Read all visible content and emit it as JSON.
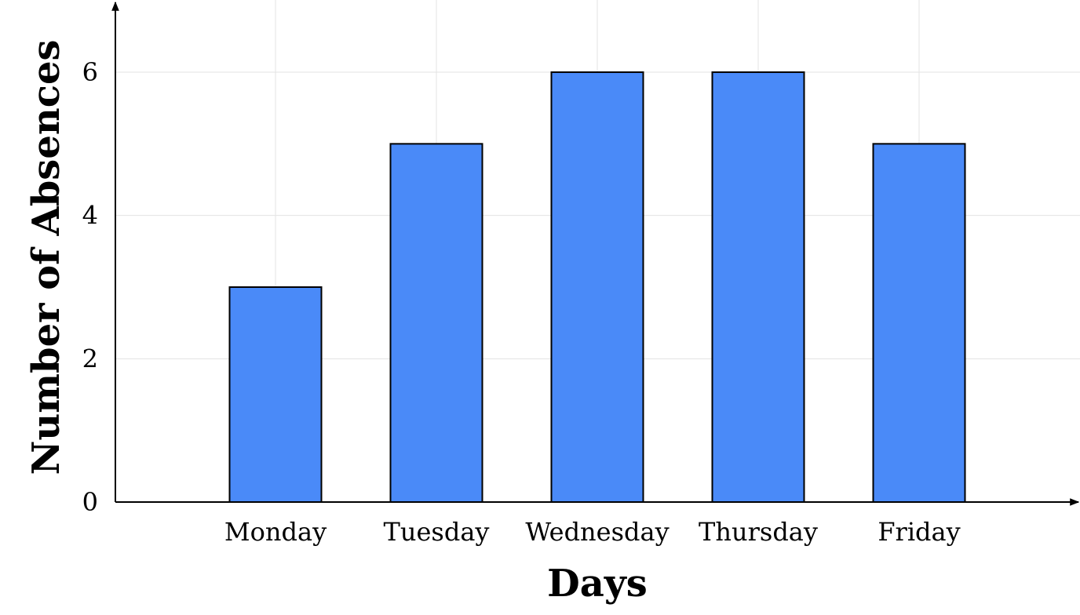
{
  "chart_data": {
    "type": "bar",
    "categories": [
      "Monday",
      "Tuesday",
      "Wednesday",
      "Thursday",
      "Friday"
    ],
    "values": [
      3,
      5,
      6,
      6,
      5
    ],
    "xlabel": "Days",
    "ylabel": "Number of Absences",
    "ylim": [
      0,
      7
    ],
    "yticks": [
      0,
      2,
      4,
      6
    ],
    "grid": true,
    "bar_color": "#4a8af8",
    "bar_edge_color": "#000000"
  }
}
